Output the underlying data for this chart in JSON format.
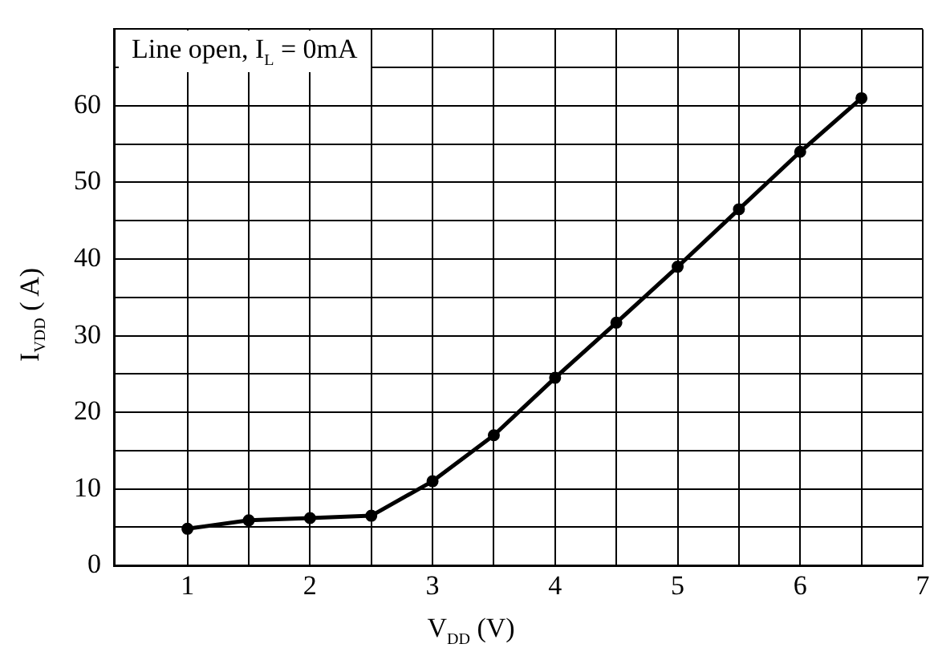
{
  "chart_data": {
    "type": "line",
    "xlabel": "V$_{DD}$ (V)",
    "ylabel": "I$_{VDD}$ ( A)",
    "annotations": [
      "Line open, I$_{L}$ = 0mA"
    ],
    "x": [
      1,
      1.5,
      2,
      2.5,
      3,
      3.5,
      4,
      4.5,
      5,
      5.5,
      6,
      6.5
    ],
    "series": [
      {
        "color": "#000000",
        "values": [
          4.8,
          5.9,
          6.2,
          6.5,
          11,
          17,
          24.5,
          31.7,
          39,
          46.5,
          54,
          61
        ]
      }
    ],
    "xlim": [
      0.4,
      7
    ],
    "xticks": [
      1,
      {
        "value": 1.5,
        "label": null
      },
      2,
      {
        "value": 2.5,
        "label": null
      },
      3,
      {
        "value": 3.5,
        "label": null
      },
      4,
      {
        "value": 4.5,
        "label": null
      },
      5,
      {
        "value": 5.5,
        "label": null
      },
      6,
      {
        "value": 6.5,
        "label": null
      },
      7
    ],
    "ylim": [
      0,
      70
    ],
    "yticks": [
      0,
      {
        "value": 5,
        "label": null
      },
      10,
      {
        "value": 15,
        "label": null
      },
      20,
      {
        "value": 25,
        "label": null
      },
      30,
      {
        "value": 35,
        "label": null
      },
      40,
      {
        "value": 45,
        "label": null
      },
      50,
      {
        "value": 55,
        "label": null
      },
      60,
      {
        "value": 65,
        "label": null
      },
      {
        "value": 70,
        "label": null
      }
    ],
    "grid": true,
    "legend": false,
    "marker": "circle",
    "line_style": "solid"
  }
}
